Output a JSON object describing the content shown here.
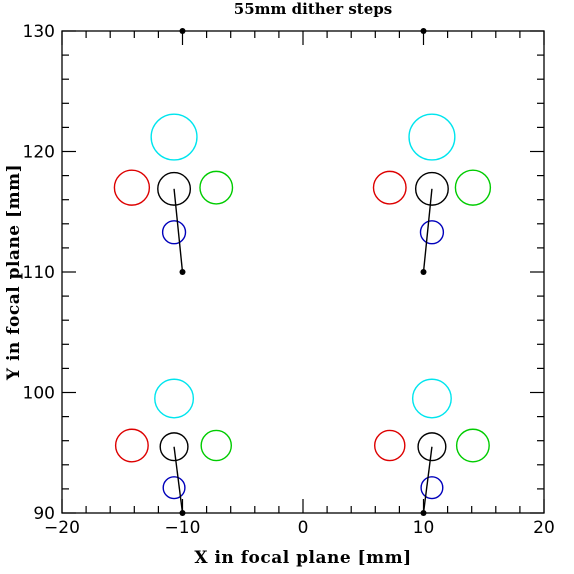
{
  "chart_data": {
    "type": "scatter",
    "title": "55mm dither steps",
    "xlabel": "X in focal plane [mm]",
    "ylabel": "Y in focal plane [mm]",
    "xlim": [
      -20,
      20
    ],
    "ylim": [
      90,
      130
    ],
    "x_ticks": [
      -20,
      -10,
      0,
      10,
      20
    ],
    "y_ticks": [
      90,
      100,
      110,
      120,
      130
    ],
    "x_tick_labels": [
      "−20",
      "−10",
      "0",
      "10",
      "20"
    ],
    "y_tick_labels": [
      "90",
      "100",
      "110",
      "120",
      "130"
    ],
    "grid": false,
    "colors": {
      "center": "#000000",
      "up": "#00e5ee",
      "left": "#dd0000",
      "right": "#00cc00",
      "down": "#0000bb"
    },
    "dots": [
      {
        "x": -10,
        "y": 130
      },
      {
        "x": 10,
        "y": 130
      },
      {
        "x": -10,
        "y": 110
      },
      {
        "x": 10,
        "y": 110
      },
      {
        "x": -10,
        "y": 90
      },
      {
        "x": 10,
        "y": 90
      }
    ],
    "groups": [
      {
        "circles": [
          {
            "role": "up",
            "x": -10.7,
            "y": 121.2,
            "r": 1.9
          },
          {
            "role": "left",
            "x": -14.2,
            "y": 117.0,
            "r": 1.45
          },
          {
            "role": "center",
            "x": -10.7,
            "y": 116.9,
            "r": 1.35
          },
          {
            "role": "right",
            "x": -7.2,
            "y": 117.0,
            "r": 1.35
          },
          {
            "role": "down",
            "x": -10.7,
            "y": 113.3,
            "r": 0.95
          }
        ],
        "segment": {
          "x1": -10.7,
          "y1": 116.9,
          "x2": -10.0,
          "y2": 110.0
        }
      },
      {
        "circles": [
          {
            "role": "up",
            "x": 10.7,
            "y": 121.2,
            "r": 1.9
          },
          {
            "role": "left",
            "x": 7.2,
            "y": 117.0,
            "r": 1.35
          },
          {
            "role": "center",
            "x": 10.7,
            "y": 116.9,
            "r": 1.35
          },
          {
            "role": "right",
            "x": 14.1,
            "y": 117.0,
            "r": 1.45
          },
          {
            "role": "down",
            "x": 10.7,
            "y": 113.3,
            "r": 0.95
          }
        ],
        "segment": {
          "x1": 10.7,
          "y1": 116.9,
          "x2": 10.0,
          "y2": 110.0
        }
      },
      {
        "circles": [
          {
            "role": "up",
            "x": -10.7,
            "y": 99.5,
            "r": 1.6
          },
          {
            "role": "left",
            "x": -14.2,
            "y": 95.6,
            "r": 1.35
          },
          {
            "role": "center",
            "x": -10.7,
            "y": 95.5,
            "r": 1.15
          },
          {
            "role": "right",
            "x": -7.2,
            "y": 95.6,
            "r": 1.25
          },
          {
            "role": "down",
            "x": -10.7,
            "y": 92.1,
            "r": 0.9
          }
        ],
        "segment": {
          "x1": -10.7,
          "y1": 95.5,
          "x2": -10.0,
          "y2": 90.0
        }
      },
      {
        "circles": [
          {
            "role": "up",
            "x": 10.7,
            "y": 99.5,
            "r": 1.6
          },
          {
            "role": "left",
            "x": 7.2,
            "y": 95.6,
            "r": 1.25
          },
          {
            "role": "center",
            "x": 10.7,
            "y": 95.5,
            "r": 1.15
          },
          {
            "role": "right",
            "x": 14.1,
            "y": 95.6,
            "r": 1.35
          },
          {
            "role": "down",
            "x": 10.7,
            "y": 92.1,
            "r": 0.9
          }
        ],
        "segment": {
          "x1": 10.7,
          "y1": 95.5,
          "x2": 10.0,
          "y2": 90.0
        }
      }
    ]
  }
}
